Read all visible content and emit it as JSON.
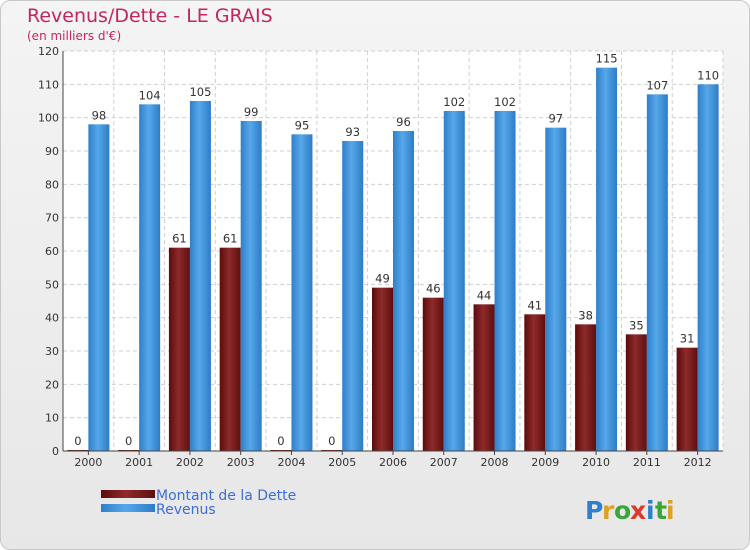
{
  "header": {
    "title": "Revenus/Dette - LE GRAIS",
    "subtitle": "(en milliers d'€)"
  },
  "chart_data": {
    "type": "bar",
    "title": "Revenus/Dette - LE GRAIS",
    "subtitle": "(en milliers d'€)",
    "categories": [
      "2000",
      "2001",
      "2002",
      "2003",
      "2004",
      "2005",
      "2006",
      "2007",
      "2008",
      "2009",
      "2010",
      "2011",
      "2012"
    ],
    "series": [
      {
        "name": "Montant de la Dette",
        "color": "#7a1a1a",
        "values": [
          0,
          0,
          61,
          61,
          0,
          0,
          49,
          46,
          44,
          41,
          38,
          35,
          31
        ]
      },
      {
        "name": "Revenus",
        "color": "#3a8fd8",
        "values": [
          98,
          104,
          105,
          99,
          95,
          93,
          96,
          102,
          102,
          97,
          115,
          107,
          110
        ]
      }
    ],
    "ylim": [
      0,
      120
    ],
    "yticks": [
      0,
      10,
      20,
      30,
      40,
      50,
      60,
      70,
      80,
      90,
      100,
      110,
      120
    ],
    "grid": true,
    "legend": "bottom-left"
  },
  "brand": {
    "logo_text": "Proxiti"
  }
}
